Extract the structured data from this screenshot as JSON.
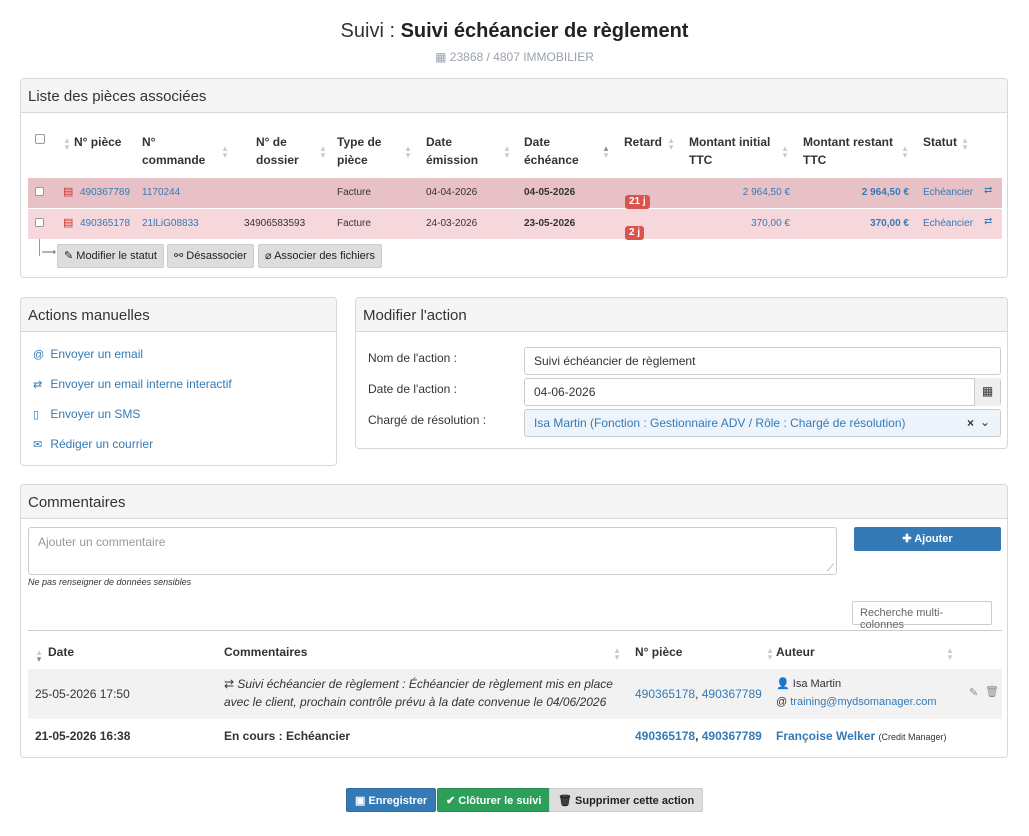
{
  "header": {
    "title_prefix": "Suivi :",
    "title_main": "Suivi échéancier de règlement",
    "subtitle": "23868 / 4807 IMMOBILIER"
  },
  "pieces": {
    "panel_title": "Liste des pièces associées",
    "columns": [
      "N° pièce",
      "N° commande",
      "N° de dossier",
      "Type de pièce",
      "Date émission",
      "Date échéance",
      "Retard",
      "Montant initial TTC",
      "Montant restant TTC",
      "Statut"
    ],
    "col_lines": {
      "commande": [
        "N°",
        "commande"
      ],
      "dossier": [
        "N° de",
        "dossier"
      ],
      "type": [
        "Type de",
        "pièce"
      ],
      "emission": [
        "Date",
        "émission"
      ],
      "echeance": [
        "Date",
        "échéance"
      ],
      "initial": [
        "Montant initial",
        "TTC"
      ],
      "restant": [
        "Montant restant",
        "TTC"
      ]
    },
    "rows": [
      {
        "piece": "490367789",
        "commande": "1170244",
        "dossier": "",
        "type": "Facture",
        "emission": "04-04-2026",
        "echeance": "04-05-2026",
        "retard": "21 j",
        "initial": "2 964,50 €",
        "restant": "2 964,50 €",
        "statut": "Echéancier",
        "bg": "#e8c1c6"
      },
      {
        "piece": "490365178",
        "commande": "21lLiG08833",
        "dossier": "34906583593",
        "type": "Facture",
        "emission": "24-03-2026",
        "echeance": "23-05-2026",
        "retard": "2 j",
        "initial": "370,00 €",
        "restant": "370,00 €",
        "statut": "Echéancier",
        "bg": "#f6d8dc"
      }
    ],
    "buttons": {
      "modifier_statut": "Modifier le statut",
      "desassocier": "Désassocier",
      "associer": "Associer des fichiers"
    }
  },
  "actions": {
    "panel_title": "Actions manuelles",
    "items": [
      {
        "label": "Envoyer un email",
        "icon": "at-icon"
      },
      {
        "label": "Envoyer un email interne interactif",
        "icon": "exchange-icon"
      },
      {
        "label": "Envoyer un SMS",
        "icon": "mobile-icon"
      },
      {
        "label": "Rédiger un courrier",
        "icon": "envelope-icon"
      }
    ]
  },
  "modifier": {
    "panel_title": "Modifier l'action",
    "nom_label": "Nom de l'action :",
    "nom_value": "Suivi échéancier de règlement",
    "date_label": "Date de l'action :",
    "date_value": "04-06-2026",
    "charge_label": "Chargé de résolution :",
    "charge_value": "Isa Martin (Fonction : Gestionnaire ADV / Rôle : Chargé de résolution)"
  },
  "comments": {
    "panel_title": "Commentaires",
    "placeholder": "Ajouter un commentaire",
    "add_label": "Ajouter",
    "hint": "Ne pas renseigner de données sensibles",
    "search_placeholder": "Recherche multi-colonnes",
    "columns": [
      "Date",
      "Commentaires",
      "N° pièce",
      "Auteur"
    ],
    "rows": [
      {
        "date": "25-05-2026 17:50",
        "text": "Suivi échéancier de règlement : Échéancier de règlement mis en place avec le client, prochain contrôle prévu à la date convenue le 04/06/2026",
        "text_title": "Suivi échéancier de règlement :",
        "text_body": " Échéancier de règlement mis en place",
        "text_line2": "avec le client, prochain contrôle prévu à la date convenue le 04/06/2026",
        "piece1": "490365178",
        "piece2": "490367789",
        "author": "Isa Martin",
        "email": "training@mydsomanager.com"
      },
      {
        "date": "21-05-2026 16:38",
        "text": "En cours : Echéancier",
        "piece1": "490365178",
        "piece2": "490367789",
        "author": "Françoise Welker",
        "role": "(Credit Manager)"
      }
    ]
  },
  "footer": {
    "save": "Enregistrer",
    "close": "Clôturer le suivi",
    "delete": "Supprimer cette action"
  },
  "colors": {
    "primary": "#337ab7",
    "success": "#2e9e5b",
    "danger": "#d9534f"
  }
}
